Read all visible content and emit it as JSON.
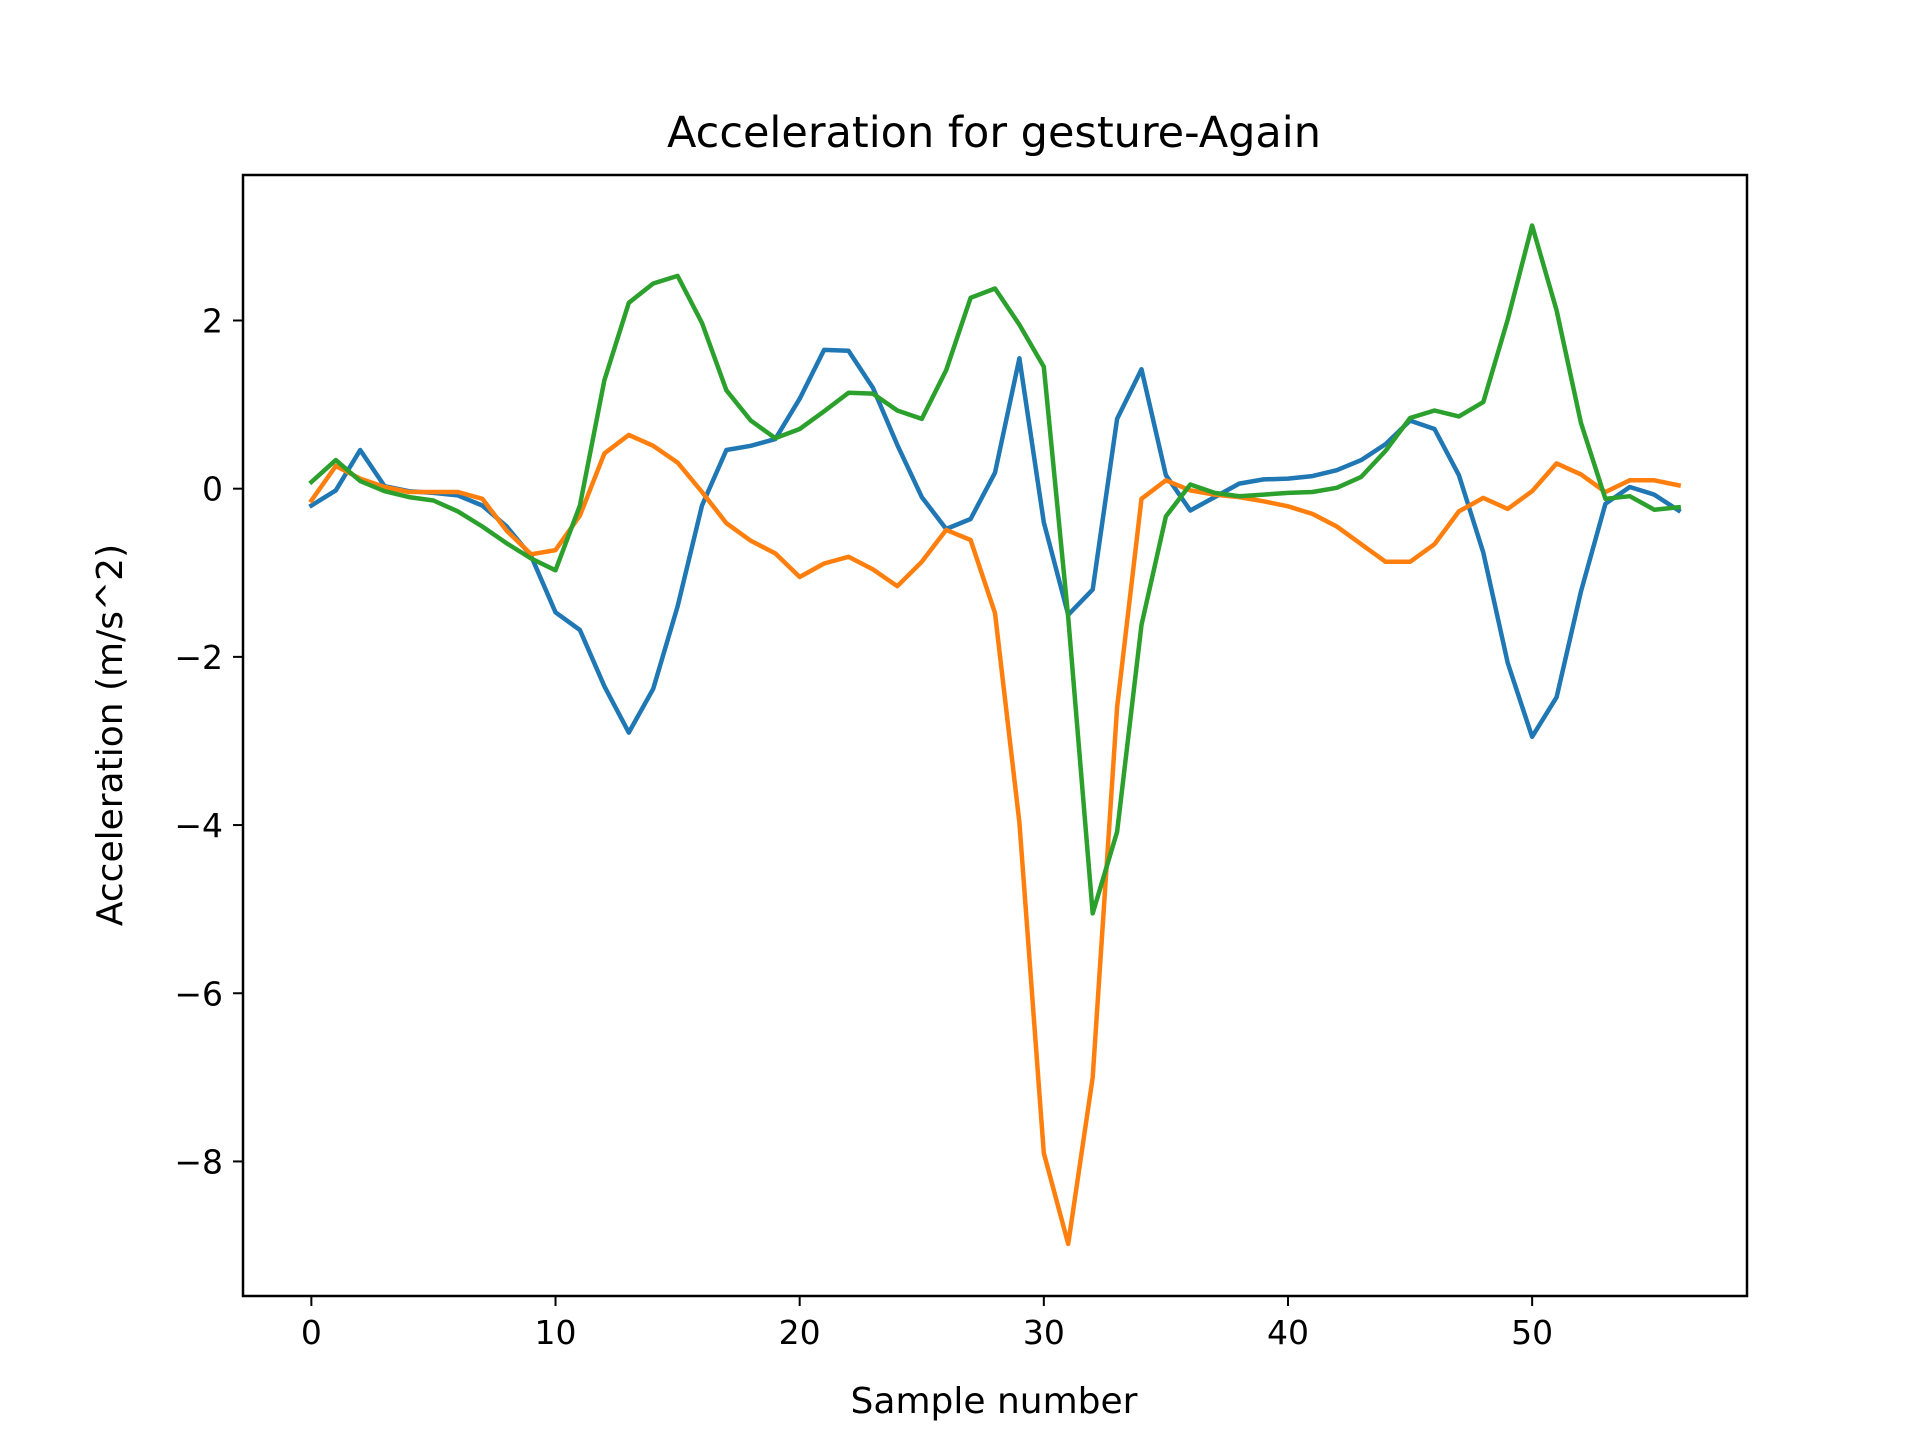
{
  "chart_data": {
    "type": "line",
    "title": "Acceleration for gesture-Again",
    "xlabel": "Sample number",
    "ylabel": "Acceleration (m/s^2)",
    "xlim": [
      -2.8,
      58.8
    ],
    "ylim": [
      -9.6,
      3.73
    ],
    "xticks": [
      0,
      10,
      20,
      30,
      40,
      50
    ],
    "yticks": [
      2,
      0,
      -2,
      -4,
      -6,
      -8
    ],
    "ytick_labels": [
      "2",
      "0",
      "−2",
      "−4",
      "−6",
      "−8"
    ],
    "grid": false,
    "legend": "none",
    "x": [
      0,
      1,
      2,
      3,
      4,
      5,
      6,
      7,
      8,
      9,
      10,
      11,
      12,
      13,
      14,
      15,
      16,
      17,
      18,
      19,
      20,
      21,
      22,
      23,
      24,
      25,
      26,
      27,
      28,
      29,
      30,
      31,
      32,
      33,
      34,
      35,
      36,
      37,
      38,
      39,
      40,
      41,
      42,
      43,
      44,
      45,
      46,
      47,
      48,
      49,
      50,
      51,
      52,
      53,
      54,
      55,
      56
    ],
    "series": [
      {
        "color": "#1f77b4",
        "values": [
          -0.2,
          -0.02,
          0.46,
          0.03,
          -0.03,
          -0.05,
          -0.08,
          -0.2,
          -0.45,
          -0.8,
          -1.47,
          -1.68,
          -2.35,
          -2.9,
          -2.38,
          -1.4,
          -0.2,
          0.46,
          0.51,
          0.59,
          1.07,
          1.65,
          1.64,
          1.2,
          0.52,
          -0.1,
          -0.48,
          -0.36,
          0.19,
          1.55,
          -0.4,
          -1.5,
          -1.2,
          0.83,
          1.42,
          0.16,
          -0.26,
          -0.1,
          0.06,
          0.11,
          0.12,
          0.15,
          0.22,
          0.34,
          0.53,
          0.81,
          0.71,
          0.16,
          -0.76,
          -2.07,
          -2.95,
          -2.48,
          -1.22,
          -0.18,
          0.02,
          -0.07,
          -0.26
        ]
      },
      {
        "color": "#ff7f0e",
        "values": [
          -0.14,
          0.27,
          0.12,
          0.02,
          -0.04,
          -0.04,
          -0.04,
          -0.12,
          -0.5,
          -0.78,
          -0.73,
          -0.32,
          0.42,
          0.64,
          0.51,
          0.31,
          -0.04,
          -0.41,
          -0.62,
          -0.77,
          -1.05,
          -0.89,
          -0.81,
          -0.96,
          -1.16,
          -0.87,
          -0.49,
          -0.61,
          -1.48,
          -3.97,
          -7.9,
          -8.98,
          -7.0,
          -2.6,
          -0.12,
          0.1,
          -0.02,
          -0.07,
          -0.1,
          -0.15,
          -0.21,
          -0.3,
          -0.45,
          -0.66,
          -0.87,
          -0.87,
          -0.66,
          -0.27,
          -0.11,
          -0.24,
          -0.03,
          0.3,
          0.17,
          -0.04,
          0.1,
          0.1,
          0.04
        ]
      },
      {
        "color": "#2ca02c",
        "values": [
          0.08,
          0.34,
          0.09,
          -0.03,
          -0.1,
          -0.14,
          -0.27,
          -0.45,
          -0.65,
          -0.83,
          -0.97,
          -0.2,
          1.29,
          2.21,
          2.44,
          2.53,
          1.97,
          1.17,
          0.81,
          0.6,
          0.71,
          0.92,
          1.14,
          1.13,
          0.93,
          0.83,
          1.41,
          2.27,
          2.38,
          1.95,
          1.45,
          -1.53,
          -5.05,
          -4.08,
          -1.62,
          -0.33,
          0.05,
          -0.05,
          -0.09,
          -0.07,
          -0.05,
          -0.04,
          0.01,
          0.14,
          0.45,
          0.84,
          0.93,
          0.86,
          1.03,
          2.01,
          3.13,
          2.12,
          0.78,
          -0.12,
          -0.09,
          -0.25,
          -0.22
        ]
      }
    ]
  }
}
